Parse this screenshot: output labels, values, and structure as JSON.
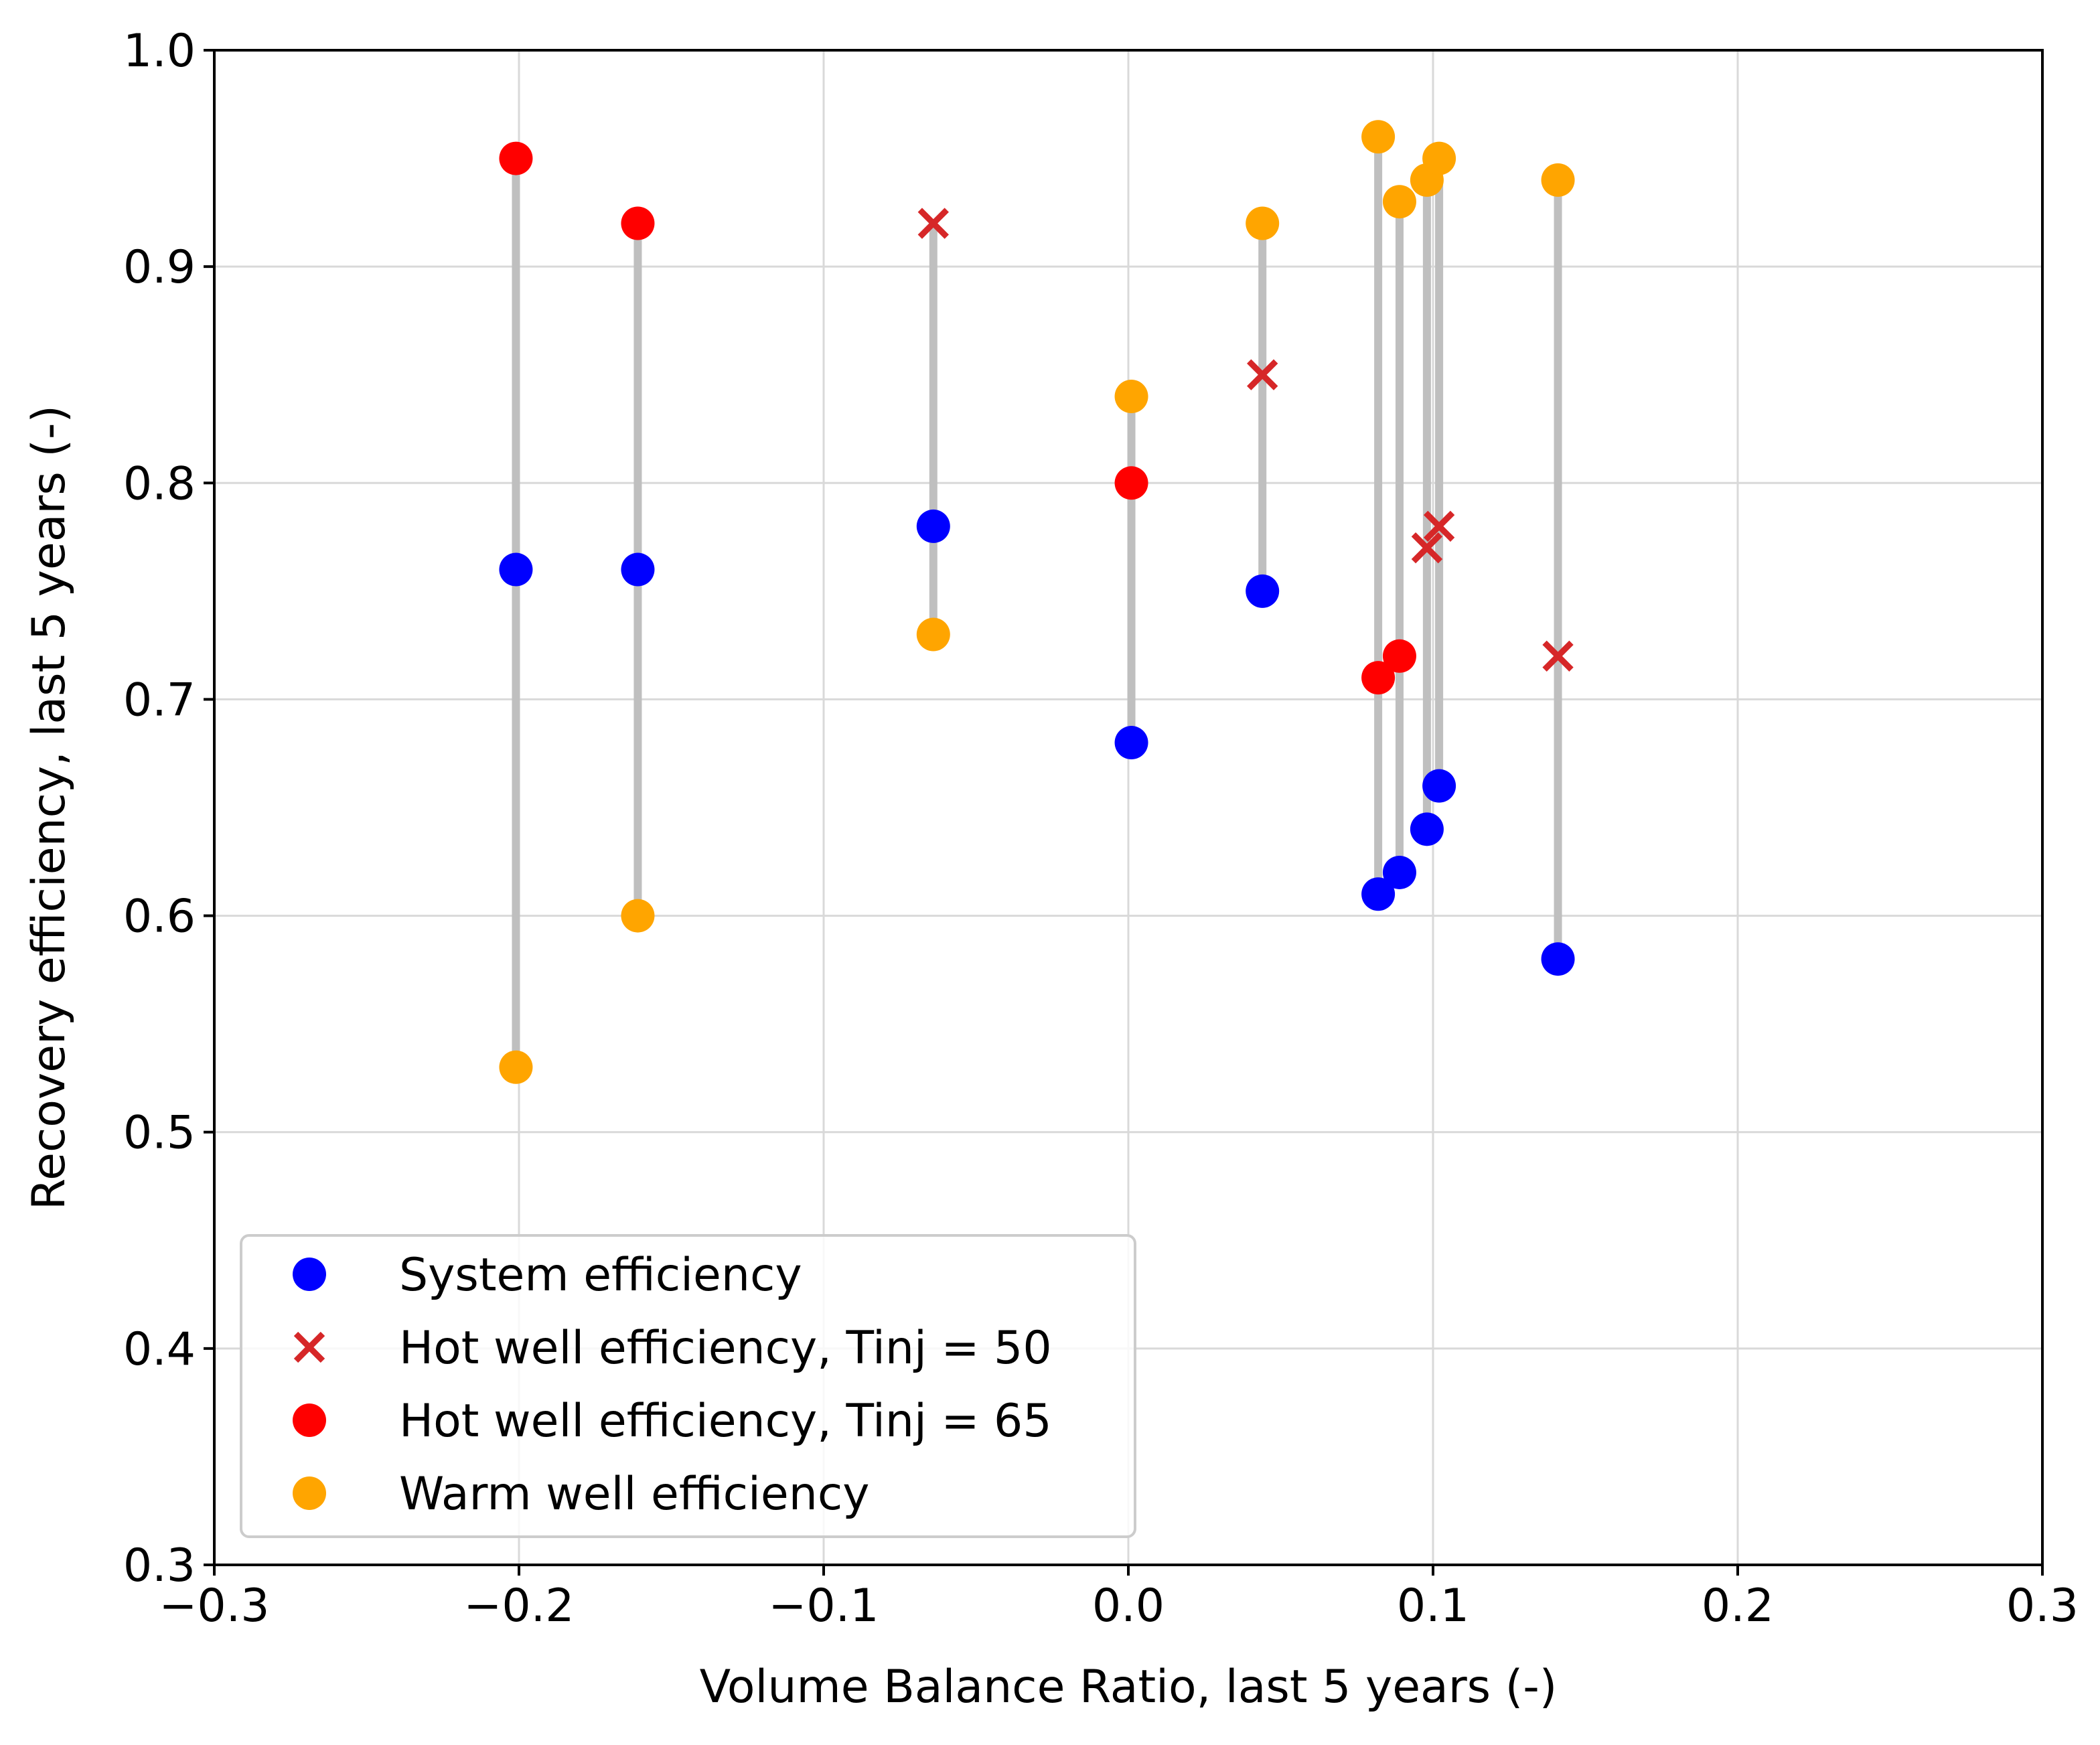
{
  "chart_data": {
    "type": "scatter",
    "title": "",
    "xlabel": "Volume Balance Ratio, last 5 years (-)",
    "ylabel": "Recovery efficiency, last 5 years (-)",
    "xlim": [
      -0.3,
      0.3
    ],
    "ylim": [
      0.3,
      1.0
    ],
    "xticks": [
      -0.3,
      -0.2,
      -0.1,
      0.0,
      0.1,
      0.2,
      0.3
    ],
    "xtick_labels": [
      "−0.3",
      "−0.2",
      "−0.1",
      "0.0",
      "0.1",
      "0.2",
      "0.3"
    ],
    "yticks": [
      0.3,
      0.4,
      0.5,
      0.6,
      0.7,
      0.8,
      0.9,
      1.0
    ],
    "ytick_labels": [
      "0.3",
      "0.4",
      "0.5",
      "0.6",
      "0.7",
      "0.8",
      "0.9",
      "1.0"
    ],
    "grid": true,
    "legend_position": "lower-left",
    "connector_color": "#bfbfbf",
    "series": [
      {
        "name": "System efficiency",
        "marker": "circle",
        "color": "#0000ff",
        "x": [
          -0.201,
          -0.161,
          -0.064,
          0.001,
          0.044,
          0.082,
          0.089,
          0.098,
          0.102,
          0.141
        ],
        "y": [
          0.76,
          0.76,
          0.78,
          0.68,
          0.75,
          0.61,
          0.62,
          0.64,
          0.66,
          0.58
        ]
      },
      {
        "name": "Hot well efficiency, Tinj = 50",
        "marker": "x",
        "color": "#d62728",
        "x": [
          -0.064,
          0.044,
          0.098,
          0.102,
          0.141
        ],
        "y": [
          0.92,
          0.85,
          0.77,
          0.78,
          0.72
        ]
      },
      {
        "name": "Hot well efficiency, Tinj = 65",
        "marker": "circle",
        "color": "#ff0000",
        "x": [
          -0.201,
          -0.161,
          0.001,
          0.082,
          0.089
        ],
        "y": [
          0.95,
          0.92,
          0.8,
          0.71,
          0.72
        ]
      },
      {
        "name": "Warm well efficiency",
        "marker": "circle",
        "color": "#ffa500",
        "x": [
          -0.201,
          -0.161,
          -0.064,
          0.001,
          0.044,
          0.082,
          0.089,
          0.098,
          0.102,
          0.141
        ],
        "y": [
          0.53,
          0.6,
          0.73,
          0.84,
          0.92,
          0.96,
          0.93,
          0.94,
          0.95,
          0.94
        ]
      }
    ],
    "connectors": [
      {
        "x": -0.201,
        "y_min": 0.53,
        "y_max": 0.95
      },
      {
        "x": -0.161,
        "y_min": 0.6,
        "y_max": 0.92
      },
      {
        "x": -0.064,
        "y_min": 0.73,
        "y_max": 0.92
      },
      {
        "x": 0.001,
        "y_min": 0.68,
        "y_max": 0.84
      },
      {
        "x": 0.044,
        "y_min": 0.75,
        "y_max": 0.92
      },
      {
        "x": 0.082,
        "y_min": 0.61,
        "y_max": 0.96
      },
      {
        "x": 0.089,
        "y_min": 0.62,
        "y_max": 0.93
      },
      {
        "x": 0.098,
        "y_min": 0.64,
        "y_max": 0.94
      },
      {
        "x": 0.102,
        "y_min": 0.66,
        "y_max": 0.95
      },
      {
        "x": 0.141,
        "y_min": 0.58,
        "y_max": 0.94
      }
    ]
  }
}
